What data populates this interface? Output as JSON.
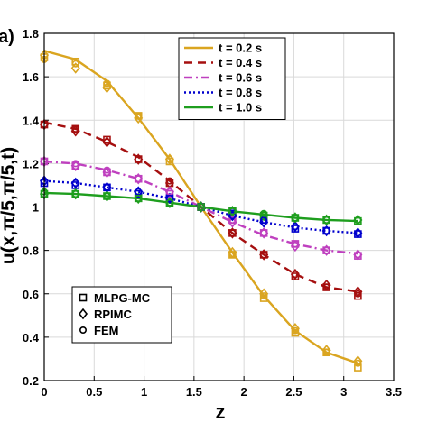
{
  "chart_data": {
    "type": "line",
    "panel_label": "a)",
    "xlabel": "z",
    "ylabel": "u(x,π/5,π/5,t)",
    "xlim": [
      0,
      3.5
    ],
    "ylim": [
      0.2,
      1.8
    ],
    "xticks": [
      0,
      0.5,
      1,
      1.5,
      2,
      2.5,
      3,
      3.5
    ],
    "xtick_labels": [
      "0",
      "0.5",
      "1",
      "1.5",
      "2",
      "2.5",
      "3",
      "3.5"
    ],
    "yticks": [
      0.2,
      0.4,
      0.6,
      0.8,
      1,
      1.2,
      1.4,
      1.6,
      1.8
    ],
    "ytick_labels": [
      "0.2",
      "0.4",
      "0.6",
      "0.8",
      "1",
      "1.2",
      "1.4",
      "1.6",
      "1.8"
    ],
    "grid": true,
    "legend_position": "top-center",
    "marker_legend_position": "bottom-left",
    "x": [
      0,
      0.3142,
      0.6283,
      0.9425,
      1.2566,
      1.5708,
      1.885,
      2.1991,
      2.5133,
      2.8274,
      3.1416
    ],
    "series": [
      {
        "name": "t = 0.2 s",
        "color": "#DAA520",
        "dash": "solid",
        "values": [
          1.72,
          1.68,
          1.58,
          1.41,
          1.22,
          1.0,
          0.79,
          0.59,
          0.43,
          0.33,
          0.28
        ]
      },
      {
        "name": "t = 0.4 s",
        "color": "#A50F0F",
        "dash": "dashed",
        "values": [
          1.39,
          1.36,
          1.3,
          1.23,
          1.12,
          1.0,
          0.88,
          0.78,
          0.69,
          0.63,
          0.61
        ]
      },
      {
        "name": "t = 0.6 s",
        "color": "#BF40BF",
        "dash": "dashdot",
        "values": [
          1.21,
          1.2,
          1.17,
          1.13,
          1.07,
          1.0,
          0.93,
          0.87,
          0.83,
          0.8,
          0.785
        ]
      },
      {
        "name": "t = 0.8 s",
        "color": "#0000CD",
        "dash": "dotted",
        "values": [
          1.12,
          1.11,
          1.09,
          1.07,
          1.04,
          1.0,
          0.96,
          0.93,
          0.905,
          0.89,
          0.88
        ]
      },
      {
        "name": "t = 1.0 s",
        "color": "#1E9E1E",
        "dash": "solid",
        "values": [
          1.065,
          1.06,
          1.05,
          1.04,
          1.02,
          1.0,
          0.98,
          0.965,
          0.95,
          0.94,
          0.935
        ]
      }
    ],
    "methods": [
      "MLPG-MC",
      "RPIMC",
      "FEM"
    ],
    "method_markers": [
      "square",
      "diamond",
      "circle"
    ],
    "method_values": [
      [
        [
          1.69,
          1.67,
          1.56,
          1.42,
          1.21,
          1.0,
          0.78,
          0.58,
          0.42,
          0.33,
          0.26
        ],
        [
          1.38,
          1.36,
          1.31,
          1.22,
          1.11,
          1.0,
          0.88,
          0.78,
          0.68,
          0.63,
          0.59
        ],
        [
          1.21,
          1.19,
          1.16,
          1.13,
          1.06,
          1.0,
          0.94,
          0.88,
          0.83,
          0.8,
          0.775
        ],
        [
          1.11,
          1.1,
          1.09,
          1.06,
          1.04,
          1.0,
          0.97,
          0.94,
          0.9,
          0.89,
          0.875
        ],
        [
          1.06,
          1.06,
          1.05,
          1.04,
          1.02,
          1.0,
          0.98,
          0.96,
          0.95,
          0.94,
          0.935
        ]
      ],
      [
        [
          1.7,
          1.64,
          1.55,
          1.41,
          1.22,
          1.0,
          0.79,
          0.6,
          0.44,
          0.34,
          0.29
        ],
        [
          1.38,
          1.35,
          1.3,
          1.22,
          1.11,
          1.0,
          0.88,
          0.78,
          0.69,
          0.64,
          0.61
        ],
        [
          1.21,
          1.19,
          1.16,
          1.13,
          1.07,
          1.0,
          0.93,
          0.88,
          0.82,
          0.8,
          0.78
        ],
        [
          1.12,
          1.11,
          1.09,
          1.07,
          1.04,
          1.0,
          0.96,
          0.93,
          0.91,
          0.89,
          0.88
        ],
        [
          1.06,
          1.06,
          1.05,
          1.04,
          1.02,
          1.0,
          0.98,
          0.96,
          0.95,
          0.94,
          0.94
        ]
      ],
      [
        [
          1.68,
          1.66,
          1.57,
          1.42,
          1.22,
          1.0,
          0.78,
          0.59,
          0.43,
          0.33,
          0.28
        ],
        [
          1.38,
          1.36,
          1.3,
          1.22,
          1.12,
          1.0,
          0.88,
          0.78,
          0.69,
          0.63,
          0.6
        ],
        [
          1.21,
          1.2,
          1.17,
          1.13,
          1.07,
          1.0,
          0.94,
          0.88,
          0.83,
          0.8,
          0.78
        ],
        [
          1.12,
          1.11,
          1.09,
          1.07,
          1.04,
          1.0,
          0.96,
          0.94,
          0.91,
          0.89,
          0.88
        ],
        [
          1.07,
          1.06,
          1.05,
          1.04,
          1.02,
          1.0,
          0.98,
          0.97,
          0.95,
          0.94,
          0.94
        ]
      ]
    ]
  }
}
